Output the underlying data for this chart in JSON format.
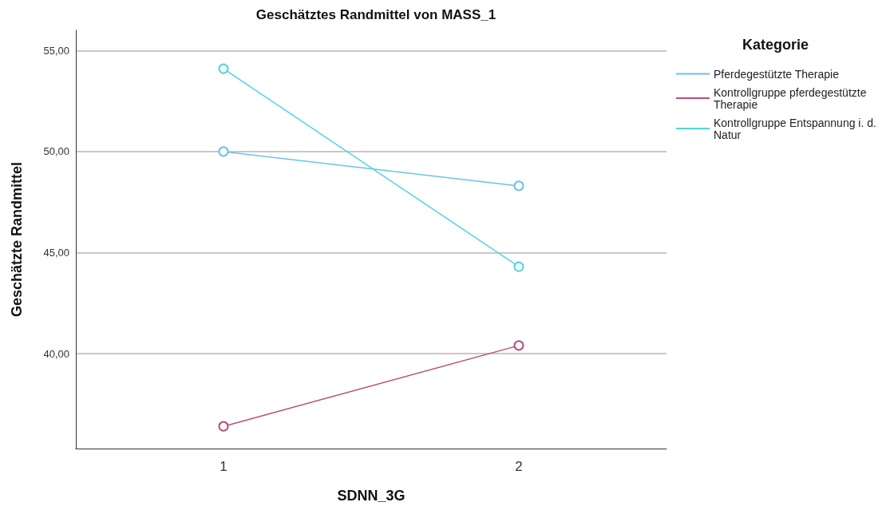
{
  "chart_data": {
    "type": "line",
    "title": "Geschätztes Randmittel von MASS_1",
    "xlabel": "SDNN_3G",
    "ylabel": "Geschätzte Randmittel",
    "legend_title": "Kategorie",
    "categories": [
      "1",
      "2"
    ],
    "series": [
      {
        "name": "Pferdegestützte Therapie",
        "color": "#6cc0ee",
        "values": [
          50.0,
          48.3
        ]
      },
      {
        "name": "Kontrollgruppe pferdegestützte Therapie",
        "color": "#b5507c",
        "values": [
          36.4,
          40.4
        ]
      },
      {
        "name": "Kontrollgruppe Entspannung i. d. Natur",
        "color": "#4fd6dc",
        "values": [
          54.1,
          44.3
        ]
      }
    ],
    "ylim": [
      35.3,
      56
    ],
    "yticks": [
      {
        "value": 40,
        "label": "40,00"
      },
      {
        "value": 45,
        "label": "45,00"
      },
      {
        "value": 50,
        "label": "50,00"
      },
      {
        "value": 55,
        "label": "55,00"
      }
    ],
    "grid": "y",
    "legend": "top right",
    "marker": "circle",
    "line_style": "solid"
  }
}
